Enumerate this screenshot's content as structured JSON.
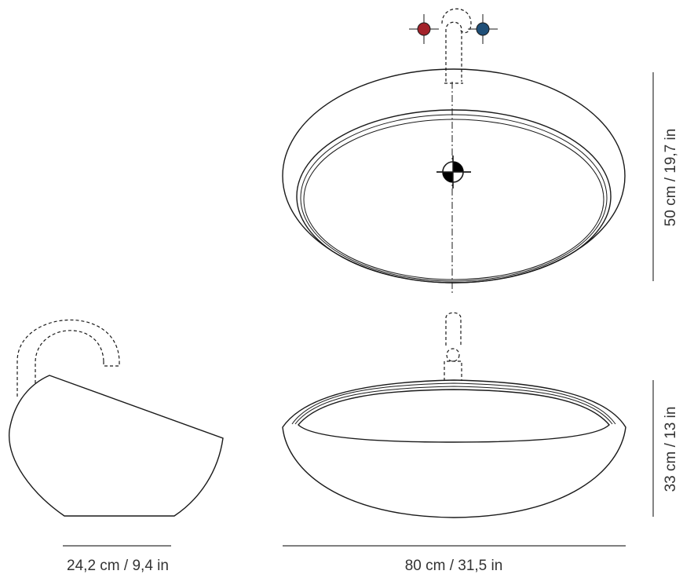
{
  "dimensions": {
    "depth_label": "24,2 cm / 9,4 in",
    "width_label": "80 cm / 31,5 in",
    "top_depth_label": "50 cm / 19,7 in",
    "height_label": "33 cm / 13 in"
  },
  "colors": {
    "line": "#1a1a1a",
    "hot_tap": "#a3222a",
    "cold_tap": "#1f4f78",
    "drain": "#000000"
  }
}
